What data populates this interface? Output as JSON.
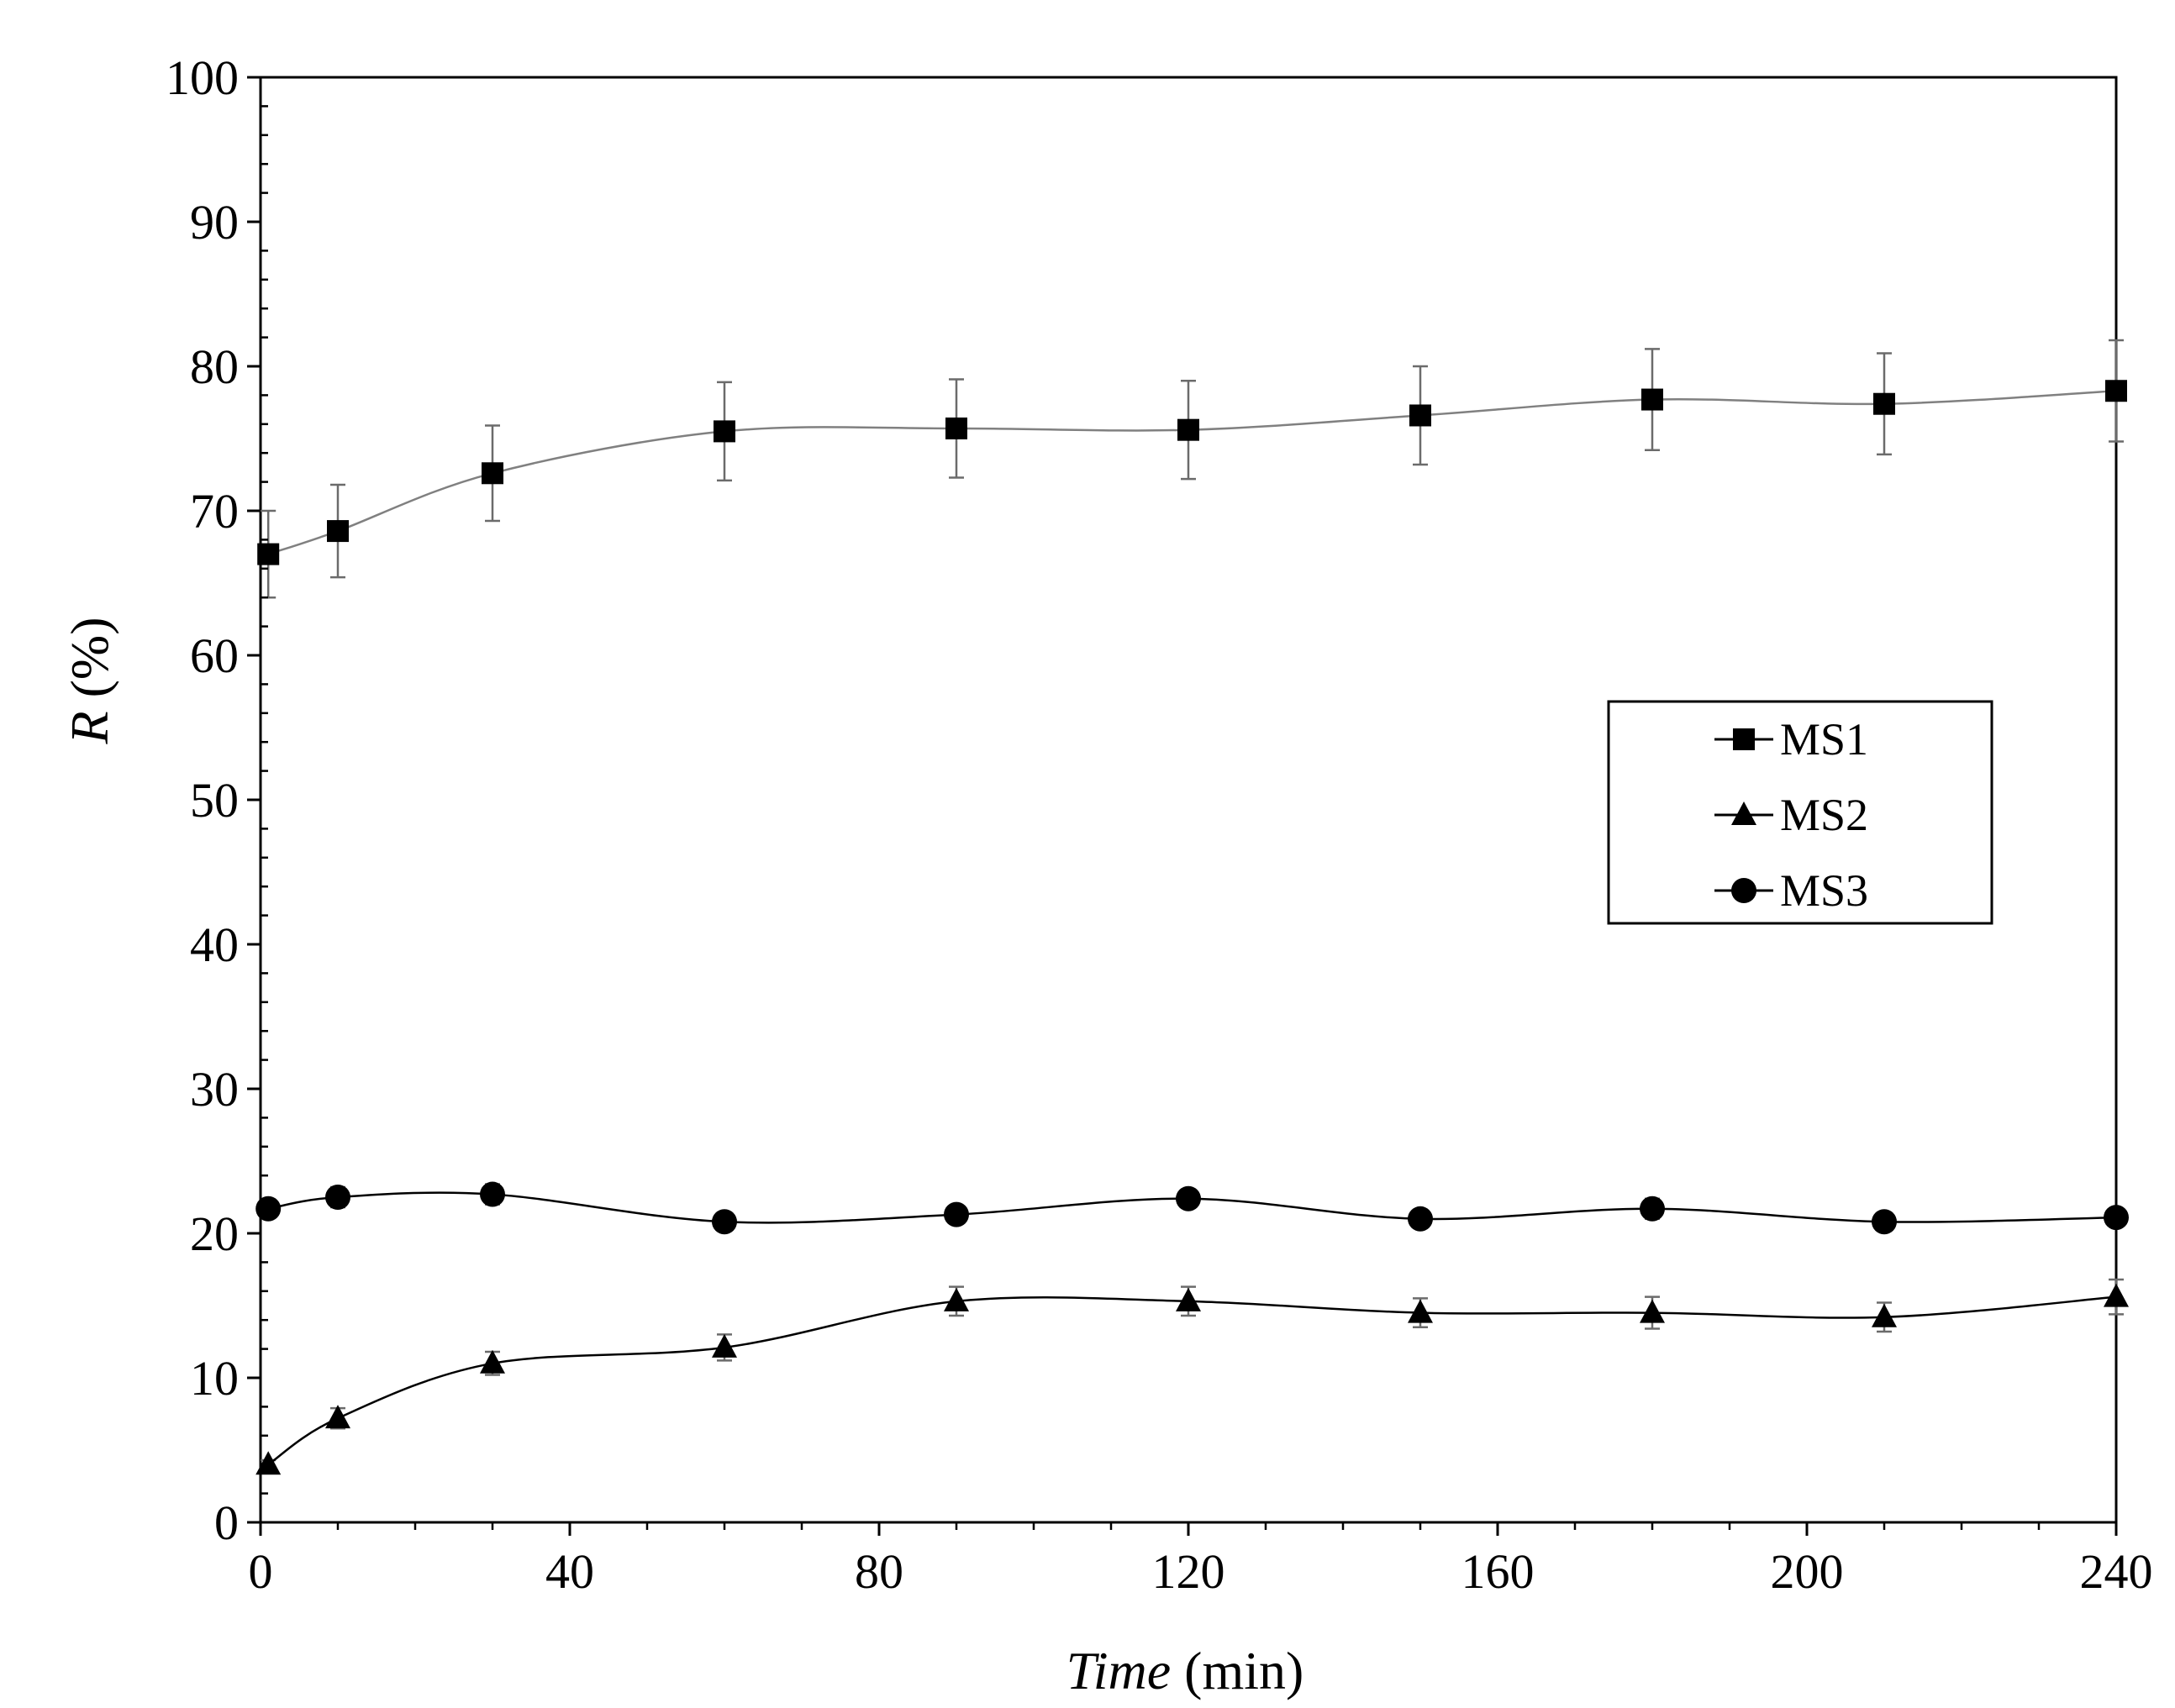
{
  "chart_data": {
    "type": "line",
    "title": "",
    "xlabel": {
      "italic": "Time",
      "rest": " (min)"
    },
    "ylabel": {
      "italic": "R",
      "rest": " (%)"
    },
    "xlim": [
      0,
      240
    ],
    "ylim": [
      0,
      100
    ],
    "x_ticks": [
      0,
      40,
      80,
      120,
      160,
      200,
      240
    ],
    "y_ticks": [
      0,
      10,
      20,
      30,
      40,
      50,
      60,
      70,
      80,
      90,
      100
    ],
    "x": [
      1,
      10,
      30,
      60,
      90,
      120,
      150,
      180,
      210,
      240
    ],
    "legend_position": "center-right",
    "series": [
      {
        "name": "MS1",
        "marker": "square",
        "line_color": "#808080",
        "values": [
          67.0,
          68.6,
          72.6,
          75.5,
          75.7,
          75.6,
          76.6,
          77.7,
          77.4,
          78.3
        ],
        "errors": [
          3.0,
          3.2,
          3.3,
          3.4,
          3.4,
          3.4,
          3.4,
          3.5,
          3.5,
          3.5
        ]
      },
      {
        "name": "MS2",
        "marker": "triangle",
        "line_color": "#000000",
        "values": [
          4.0,
          7.2,
          11.0,
          12.1,
          15.3,
          15.3,
          14.5,
          14.5,
          14.2,
          15.6
        ],
        "errors": [
          0.3,
          0.7,
          0.8,
          0.9,
          1.0,
          1.0,
          1.0,
          1.1,
          1.0,
          1.2
        ]
      },
      {
        "name": "MS3",
        "marker": "circle",
        "line_color": "#000000",
        "values": [
          21.7,
          22.5,
          22.7,
          20.8,
          21.3,
          22.4,
          21.0,
          21.7,
          20.8,
          21.1
        ],
        "errors": [
          0.6,
          0.7,
          0.7,
          0.6,
          0.6,
          0.6,
          0.6,
          0.7,
          0.6,
          0.6
        ]
      }
    ]
  }
}
